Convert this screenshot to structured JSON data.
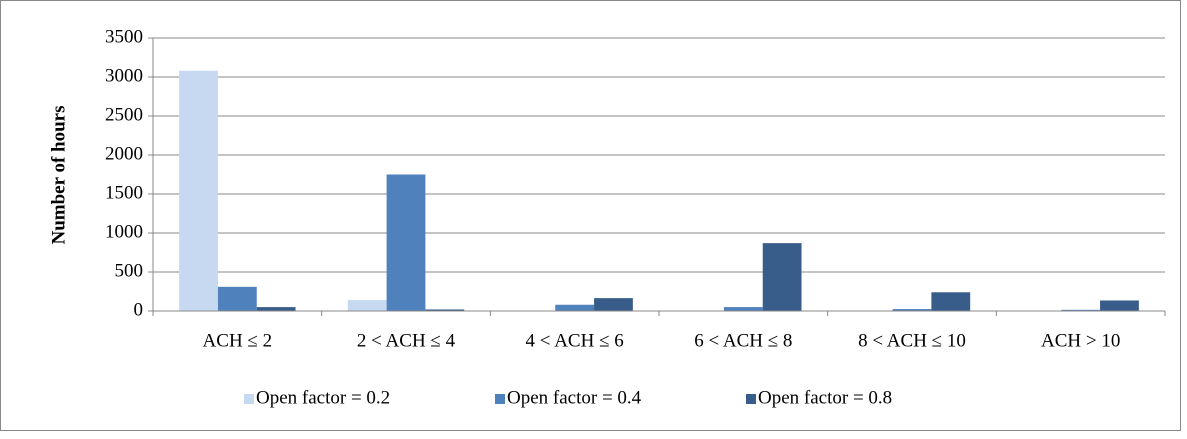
{
  "chart_data": {
    "type": "bar",
    "y_label": "Number of hours",
    "categories": [
      "ACH ≤ 2",
      "2 < ACH ≤ 4",
      "4 < ACH ≤ 6",
      "6 < ACH ≤ 8",
      "8 < ACH ≤ 10",
      "ACH > 10"
    ],
    "series": [
      {
        "name": "Open factor = 0.2",
        "color": "#c6d9f1",
        "values": [
          3080,
          140,
          5,
          5,
          5,
          5
        ]
      },
      {
        "name": "Open factor = 0.4",
        "color": "#4f81bd",
        "values": [
          310,
          1750,
          80,
          50,
          25,
          15
        ]
      },
      {
        "name": "Open factor = 0.8",
        "color": "#385d8a",
        "values": [
          50,
          20,
          165,
          870,
          240,
          135
        ]
      }
    ],
    "ylim": [
      0,
      3500
    ],
    "yticks": [
      0,
      500,
      1000,
      1500,
      2000,
      2500,
      3000,
      3500
    ],
    "grid": true,
    "legend": "bottom"
  }
}
